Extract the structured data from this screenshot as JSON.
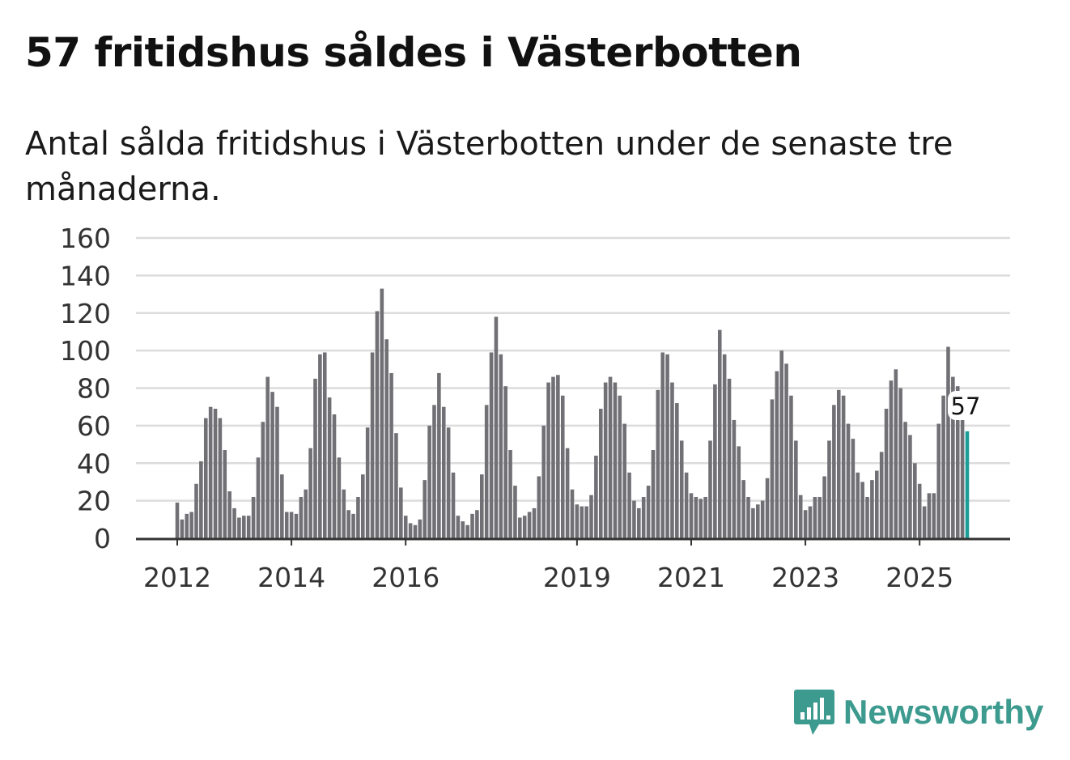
{
  "title": "57 fritidshus såldes i Västerbotten",
  "subtitle": "Antal sålda fritidshus i Västerbotten under de senaste tre månaderna.",
  "brand": {
    "name": "Newsworthy",
    "icon": "bar-chart-speech-bubble-icon",
    "color": "#3d9a8e"
  },
  "chart_data": {
    "type": "bar",
    "title": "57 fritidshus såldes i Västerbotten",
    "xlabel": "",
    "ylabel": "",
    "ylim": [
      0,
      160
    ],
    "yticks": [
      0,
      20,
      40,
      60,
      80,
      100,
      120,
      140,
      160
    ],
    "grid": true,
    "start": "2012-01",
    "frequency": "monthly",
    "xtick_labels": [
      {
        "label": "2012",
        "index": 0
      },
      {
        "label": "2014",
        "index": 24
      },
      {
        "label": "2016",
        "index": 48
      },
      {
        "label": "2019",
        "index": 84
      },
      {
        "label": "2021",
        "index": 108
      },
      {
        "label": "2023",
        "index": 132
      },
      {
        "label": "2025",
        "index": 156
      }
    ],
    "bar_color": "#717075",
    "highlight_color": "#1a9e9a",
    "highlight_label": "57",
    "values": [
      19,
      10,
      13,
      14,
      29,
      41,
      64,
      70,
      69,
      64,
      47,
      25,
      16,
      11,
      12,
      12,
      22,
      43,
      62,
      86,
      78,
      70,
      34,
      14,
      14,
      13,
      22,
      26,
      48,
      85,
      98,
      99,
      75,
      66,
      43,
      26,
      15,
      13,
      22,
      34,
      59,
      99,
      121,
      133,
      106,
      88,
      56,
      27,
      12,
      8,
      7,
      10,
      31,
      60,
      71,
      88,
      70,
      59,
      35,
      12,
      9,
      7,
      13,
      15,
      34,
      71,
      99,
      118,
      98,
      81,
      47,
      28,
      11,
      12,
      14,
      16,
      33,
      60,
      83,
      86,
      87,
      76,
      48,
      26,
      18,
      17,
      17,
      23,
      44,
      69,
      83,
      86,
      83,
      76,
      61,
      35,
      20,
      16,
      22,
      28,
      47,
      79,
      99,
      98,
      83,
      72,
      52,
      35,
      24,
      22,
      21,
      22,
      52,
      82,
      111,
      98,
      85,
      63,
      49,
      31,
      22,
      16,
      18,
      20,
      32,
      74,
      89,
      100,
      93,
      76,
      52,
      23,
      15,
      17,
      22,
      22,
      33,
      52,
      71,
      79,
      76,
      61,
      53,
      35,
      30,
      22,
      31,
      36,
      46,
      69,
      84,
      90,
      80,
      62,
      55,
      40,
      29,
      17,
      24,
      24,
      61,
      76,
      102,
      86,
      81,
      63,
      57
    ]
  }
}
